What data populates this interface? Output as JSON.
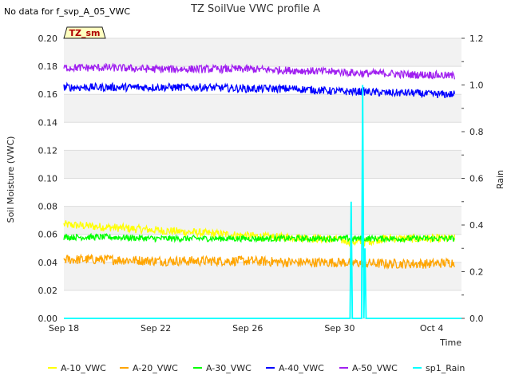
{
  "header": {
    "no_data_text": "No data for f_svp_A_05_VWC",
    "title": "TZ SoilVue VWC profile A",
    "badge": "TZ_sm"
  },
  "chart_data": {
    "type": "line",
    "title": "TZ SoilVue VWC profile A",
    "xlabel": "Time",
    "ylabel": "Soil Moisture (VWC)",
    "y2label": "Rain",
    "x_range_days": [
      0,
      17.3
    ],
    "x_ticks": [
      {
        "day": 0,
        "label": "Sep 18"
      },
      {
        "day": 4,
        "label": "Sep 22"
      },
      {
        "day": 8,
        "label": "Sep 26"
      },
      {
        "day": 12,
        "label": "Sep 30"
      },
      {
        "day": 16,
        "label": "Oct 4"
      }
    ],
    "ylim": [
      0.0,
      0.2
    ],
    "y_ticks": [
      "0.00",
      "0.02",
      "0.04",
      "0.06",
      "0.08",
      "0.10",
      "0.12",
      "0.14",
      "0.16",
      "0.18",
      "0.20"
    ],
    "y2lim": [
      0.0,
      1.2
    ],
    "y2_ticks": [
      "0.0",
      "0.2",
      "0.4",
      "0.6",
      "0.8",
      "1.0",
      "1.2"
    ],
    "grid": "horizontal bands",
    "legend_position": "bottom",
    "series": [
      {
        "name": "A-10_VWC",
        "color": "#ffff00",
        "axis": "left",
        "x": [
          0,
          1,
          2,
          3,
          4,
          5,
          6,
          7,
          8,
          9,
          10,
          11,
          12,
          12.5,
          13,
          13.5,
          14,
          15,
          16,
          17
        ],
        "y": [
          0.067,
          0.066,
          0.065,
          0.064,
          0.063,
          0.062,
          0.061,
          0.06,
          0.059,
          0.058,
          0.058,
          0.057,
          0.056,
          0.055,
          0.054,
          0.056,
          0.057,
          0.057,
          0.057,
          0.057
        ],
        "noise": 0.003
      },
      {
        "name": "A-20_VWC",
        "color": "#ffa500",
        "axis": "left",
        "x": [
          0,
          2,
          4,
          6,
          8,
          10,
          12,
          14,
          16,
          17
        ],
        "y": [
          0.042,
          0.042,
          0.041,
          0.041,
          0.041,
          0.04,
          0.04,
          0.039,
          0.039,
          0.04
        ],
        "noise": 0.0035
      },
      {
        "name": "A-30_VWC",
        "color": "#00ff00",
        "axis": "left",
        "x": [
          0,
          2,
          4,
          6,
          8,
          10,
          12,
          13,
          14,
          16,
          17
        ],
        "y": [
          0.058,
          0.058,
          0.057,
          0.057,
          0.057,
          0.057,
          0.057,
          0.057,
          0.057,
          0.057,
          0.057
        ],
        "noise": 0.0022
      },
      {
        "name": "A-40_VWC",
        "color": "#0000ff",
        "axis": "left",
        "x": [
          0,
          2,
          4,
          6,
          8,
          10,
          11,
          12,
          13,
          14,
          15,
          16,
          17
        ],
        "y": [
          0.165,
          0.165,
          0.165,
          0.165,
          0.164,
          0.164,
          0.163,
          0.162,
          0.162,
          0.161,
          0.161,
          0.16,
          0.16
        ],
        "noise": 0.0028
      },
      {
        "name": "A-50_VWC",
        "color": "#a020f0",
        "axis": "left",
        "x": [
          0,
          2,
          4,
          6,
          8,
          10,
          12,
          13,
          14,
          15,
          16,
          17
        ],
        "y": [
          0.179,
          0.179,
          0.178,
          0.178,
          0.178,
          0.177,
          0.176,
          0.175,
          0.175,
          0.174,
          0.174,
          0.173
        ],
        "noise": 0.0028
      },
      {
        "name": "sp1_Rain",
        "color": "#00ffff",
        "axis": "right",
        "x": [
          0,
          12.45,
          12.5,
          12.55,
          12.95,
          13.0,
          13.05,
          13.1,
          13.15,
          13.2,
          17.3
        ],
        "y": [
          0.0,
          0.0,
          0.5,
          0.0,
          0.0,
          1.0,
          0.0,
          0.3,
          0.0,
          0.0,
          0.0
        ],
        "noise": 0
      }
    ]
  }
}
